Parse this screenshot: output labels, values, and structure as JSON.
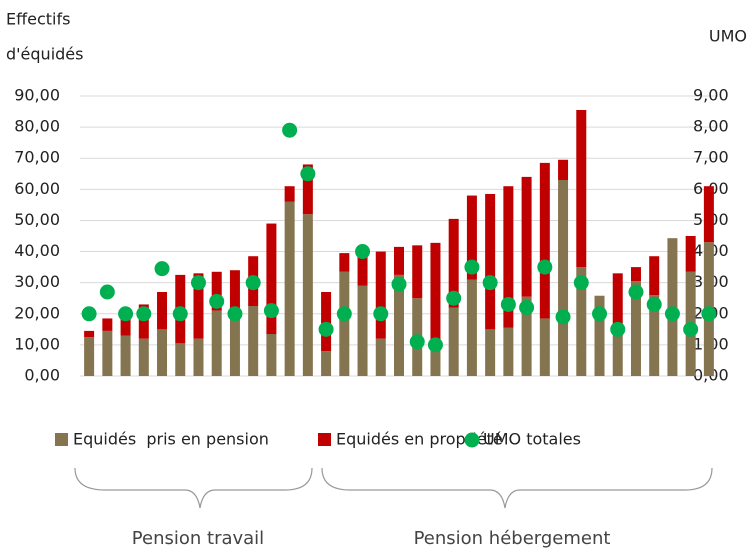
{
  "chart_data": {
    "type": "bar",
    "stacked": true,
    "ylabel": [
      "Effectifs",
      "d'équidés"
    ],
    "y2label": "UMO",
    "categories": [
      null,
      null,
      null,
      null,
      null,
      null,
      null,
      null,
      null,
      null,
      null,
      null,
      null,
      null,
      null,
      null,
      null,
      null,
      null,
      null,
      null,
      null,
      null,
      null,
      null,
      null,
      null,
      null,
      null,
      null,
      null,
      null,
      null,
      null,
      null
    ],
    "series": [
      {
        "name": "Equidés  pris en pension",
        "type": "bar",
        "color": "#857450",
        "values": [
          12.5,
          14.5,
          13,
          12,
          15,
          10.5,
          12,
          21,
          20,
          22.5,
          13.5,
          56,
          52,
          8,
          33.5,
          29,
          12,
          32.5,
          25,
          10,
          22,
          31,
          15,
          15.5,
          25.5,
          18.5,
          63,
          35,
          25.8,
          14,
          30.5,
          26,
          44.3,
          33.5,
          43
        ]
      },
      {
        "name": "Equidés en propriété",
        "type": "bar",
        "color": "#c00000",
        "values": [
          2,
          4,
          7,
          11,
          12,
          22,
          21,
          12.5,
          14,
          16,
          35.5,
          5,
          16,
          19,
          6,
          12,
          28,
          9,
          17,
          32.8,
          28.5,
          27,
          43.5,
          45.5,
          38.5,
          50,
          6.5,
          50.5,
          0,
          19,
          4.5,
          12.5,
          0,
          11.5,
          18
        ]
      },
      {
        "name": "UMO totales",
        "type": "scatter",
        "axis": "y2",
        "color": "#00b050",
        "values": [
          2.0,
          2.7,
          2.0,
          2.0,
          3.45,
          2.0,
          3.0,
          2.4,
          2.0,
          3.0,
          2.1,
          7.9,
          6.5,
          1.5,
          2.0,
          4.0,
          2.0,
          2.95,
          1.1,
          1.0,
          2.5,
          3.5,
          3.0,
          2.3,
          2.2,
          3.5,
          1.9,
          3.0,
          2.0,
          1.5,
          2.7,
          2.3,
          2.0,
          1.5,
          2.0
        ]
      }
    ],
    "ylim": [
      0,
      90
    ],
    "yticks": [
      {
        "value": 0,
        "label": "0,00"
      },
      {
        "value": 10,
        "label": "10,00"
      },
      {
        "value": 20,
        "label": "20,00"
      },
      {
        "value": 30,
        "label": "30,00"
      },
      {
        "value": 40,
        "label": "40,00"
      },
      {
        "value": 50,
        "label": "50,00"
      },
      {
        "value": 60,
        "label": "60,00"
      },
      {
        "value": 70,
        "label": "70,00"
      },
      {
        "value": 80,
        "label": "80,00"
      },
      {
        "value": 90,
        "label": "90,00"
      }
    ],
    "y2lim": [
      0,
      9
    ],
    "y2ticks": [
      {
        "value": 0,
        "label": "0,00"
      },
      {
        "value": 1,
        "label": "1,00"
      },
      {
        "value": 2,
        "label": "2,00"
      },
      {
        "value": 3,
        "label": "3,00"
      },
      {
        "value": 4,
        "label": "4,00"
      },
      {
        "value": 5,
        "label": "5,00"
      },
      {
        "value": 6,
        "label": "6,00"
      },
      {
        "value": 7,
        "label": "7,00"
      },
      {
        "value": 8,
        "label": "8,00"
      },
      {
        "value": 9,
        "label": "9,00"
      }
    ],
    "grid": true,
    "legend": "bottom",
    "groups": [
      "Pension travail",
      "Pension hébergement"
    ]
  }
}
